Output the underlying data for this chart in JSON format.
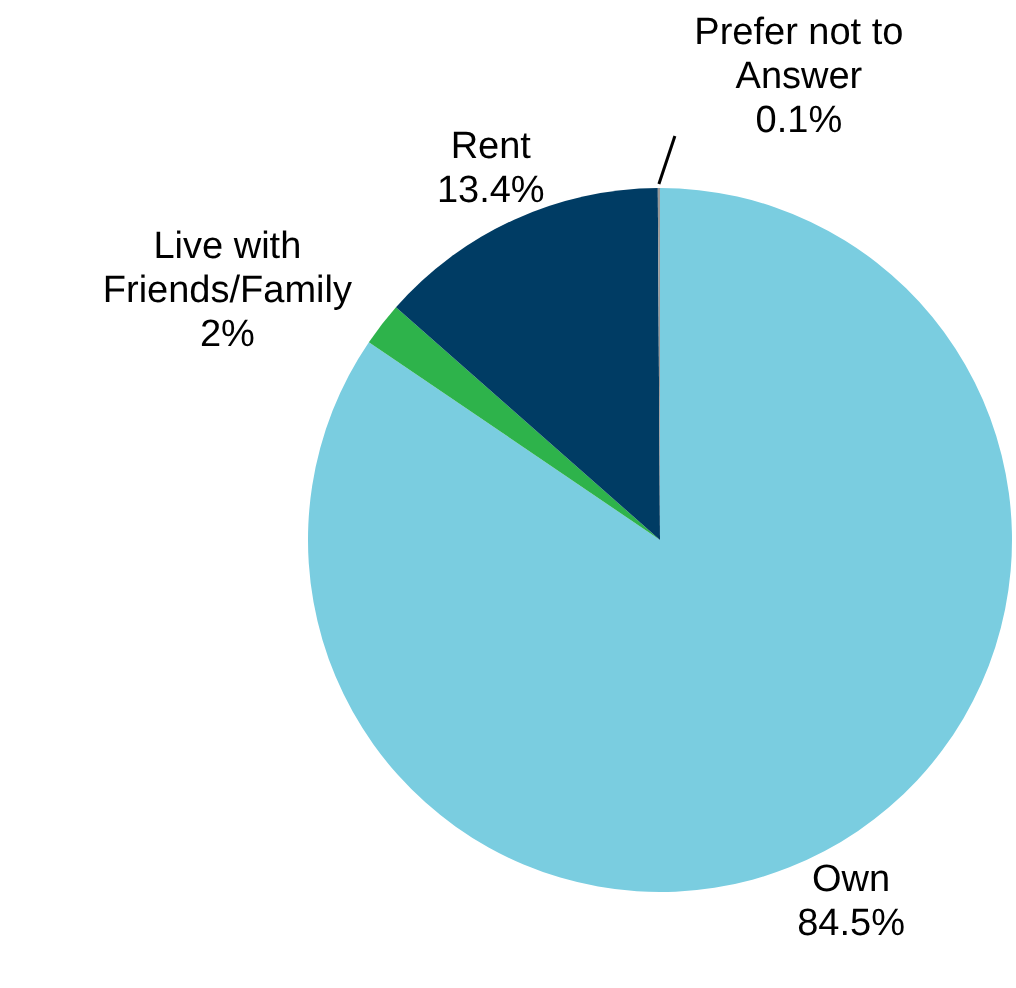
{
  "chart_data": {
    "type": "pie",
    "categories": [
      "Own",
      "Live with Friends/Family",
      "Rent",
      "Prefer not to Answer"
    ],
    "values": [
      84.5,
      2,
      13.4,
      0.1
    ],
    "colors": [
      "#7acde0",
      "#2eb34b",
      "#003c64",
      "#9a9a9a"
    ],
    "value_labels": [
      "84.5%",
      "2%",
      "13.4%",
      "0.1%"
    ]
  }
}
